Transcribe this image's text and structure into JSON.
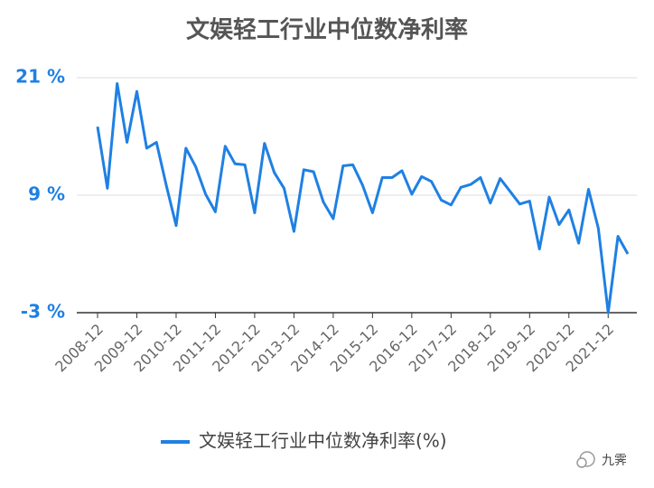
{
  "chart_data": {
    "type": "line",
    "title": "文娱轻工行业中位数净利率",
    "categories": [
      "2008-12",
      null,
      null,
      null,
      "2009-12",
      null,
      null,
      null,
      "2010-12",
      null,
      null,
      null,
      "2011-12",
      null,
      null,
      null,
      "2012-12",
      null,
      null,
      null,
      "2013-12",
      null,
      null,
      null,
      "2014-12",
      null,
      null,
      null,
      "2015-12",
      null,
      null,
      null,
      "2016-12",
      null,
      null,
      null,
      "2017-12",
      null,
      null,
      null,
      "2018-12",
      null,
      null,
      null,
      "2019-12",
      null,
      null,
      null,
      "2020-12",
      null,
      null,
      null,
      "2021-12",
      null,
      null
    ],
    "series": [
      {
        "name": "文娱轻工行业中位数净利率(%)",
        "color": "#1f80e3",
        "values": [
          16.0,
          9.7,
          20.4,
          14.4,
          19.6,
          13.8,
          14.4,
          10.0,
          5.9,
          13.8,
          11.9,
          9.1,
          7.3,
          14.0,
          12.2,
          12.1,
          7.2,
          14.3,
          11.3,
          9.7,
          5.3,
          11.6,
          11.4,
          8.3,
          6.6,
          12.0,
          12.1,
          10.0,
          7.2,
          10.8,
          10.8,
          11.5,
          9.1,
          10.9,
          10.4,
          8.5,
          8.0,
          9.8,
          10.1,
          10.8,
          8.2,
          10.7,
          9.4,
          8.1,
          8.4,
          3.5,
          8.8,
          6.0,
          7.5,
          4.1,
          9.6,
          5.6,
          -3.0,
          4.8,
          3.0
        ]
      }
    ],
    "ylim": [
      -3,
      21
    ],
    "yticks": [
      {
        "value": -3,
        "label": "-3 %"
      },
      {
        "value": 9,
        "label": "9 %"
      },
      {
        "value": 21,
        "label": "21 %"
      }
    ],
    "grid": true,
    "legend": "bottom",
    "watermark": "九霁"
  }
}
